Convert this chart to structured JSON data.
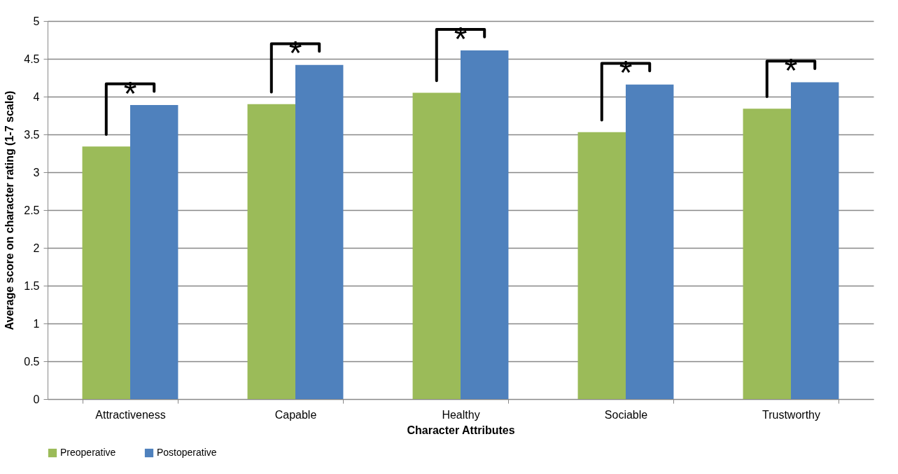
{
  "chart_data": {
    "type": "bar",
    "xlabel": "Character Attributes",
    "ylabel": "Average score on character rating (1-7 scale)",
    "categories": [
      "Attractiveness",
      "Capable",
      "Healthy",
      "Sociable",
      "Trustworthy"
    ],
    "series": [
      {
        "name": "Preoperative",
        "color": "#9bbb59",
        "values": [
          3.34,
          3.9,
          4.05,
          3.53,
          3.84
        ]
      },
      {
        "name": "Postoperative",
        "color": "#4f81bd",
        "values": [
          3.89,
          4.42,
          4.61,
          4.16,
          4.19
        ]
      }
    ],
    "ylim": [
      0,
      5
    ],
    "yticks": [
      0,
      0.5,
      1,
      1.5,
      2,
      2.5,
      3,
      3.5,
      4,
      4.5,
      5
    ],
    "grid": "y",
    "legend": "bottom",
    "annotations": [
      "*",
      "*",
      "*",
      "*",
      "*"
    ]
  }
}
